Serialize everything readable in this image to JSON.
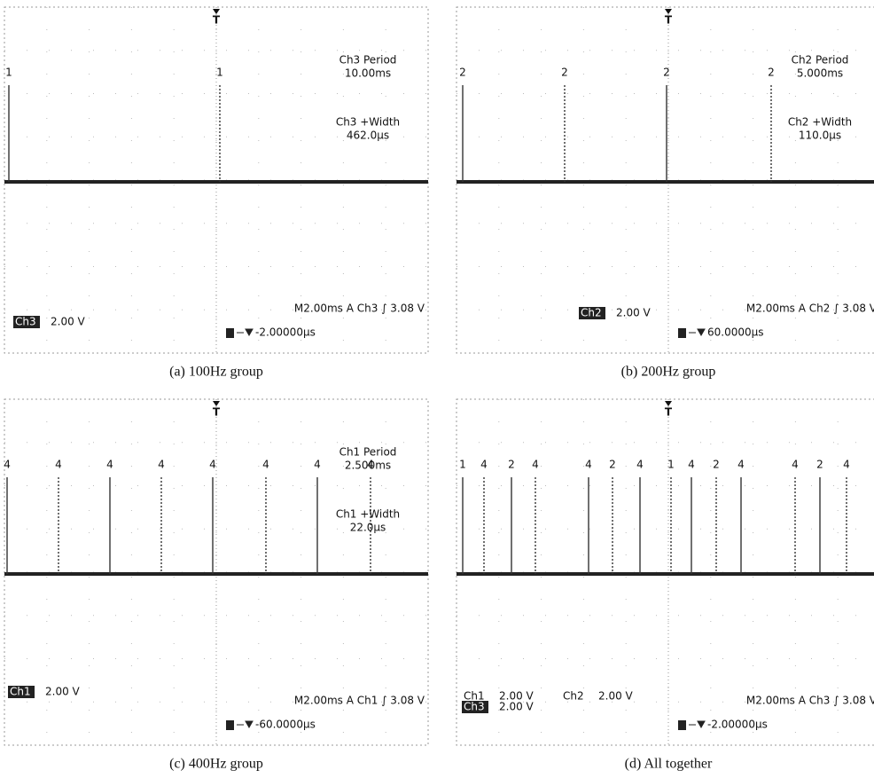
{
  "panels": [
    {
      "caption": "(a) 100Hz group",
      "markers": [
        "1",
        "1"
      ],
      "measurements": [
        {
          "label": "Ch3 Period",
          "value": "10.00ms"
        },
        {
          "label": "Ch3 +Width",
          "value": "462.0µs"
        }
      ],
      "channels": [
        {
          "name": "Ch3",
          "scale": "2.00 V"
        }
      ],
      "timebase": "M2.00ms  A  Ch3  ∫  3.08 V",
      "trigger_offset": "-2.00000µs"
    },
    {
      "caption": "(b) 200Hz group",
      "markers": [
        "2",
        "2",
        "2",
        "2"
      ],
      "measurements": [
        {
          "label": "Ch2 Period",
          "value": "5.000ms"
        },
        {
          "label": "Ch2 +Width",
          "value": "110.0µs"
        }
      ],
      "channels": [
        {
          "name": "Ch2",
          "scale": "2.00 V"
        }
      ],
      "timebase": "M2.00ms  A  Ch2  ∫  3.08 V",
      "trigger_offset": "60.0000µs"
    },
    {
      "caption": "(c) 400Hz group",
      "markers": [
        "4",
        "4",
        "4",
        "4",
        "4",
        "4",
        "4",
        "4"
      ],
      "measurements": [
        {
          "label": "Ch1 Period",
          "value": "2.500ms"
        },
        {
          "label": "Ch1 +Width",
          "value": "22.0µs"
        }
      ],
      "channels": [
        {
          "name": "Ch1",
          "scale": "2.00 V"
        }
      ],
      "timebase": "M2.00ms  A  Ch1  ∫  3.08 V",
      "trigger_offset": "-60.0000µs"
    },
    {
      "caption": "(d) All together",
      "markers": [
        "1",
        "4",
        "2",
        "4",
        "4",
        "2",
        "4",
        "1",
        "4",
        "2",
        "4",
        "4",
        "2",
        "4"
      ],
      "measurements": [],
      "channels": [
        {
          "name": "Ch1",
          "scale": "2.00 V"
        },
        {
          "name": "Ch2",
          "scale": "2.00 V"
        },
        {
          "name": "Ch3",
          "scale": "2.00 V"
        }
      ],
      "timebase": "M2.00ms  A  Ch3  ∫  3.08 V",
      "trigger_offset": "-2.00000µs"
    }
  ]
}
